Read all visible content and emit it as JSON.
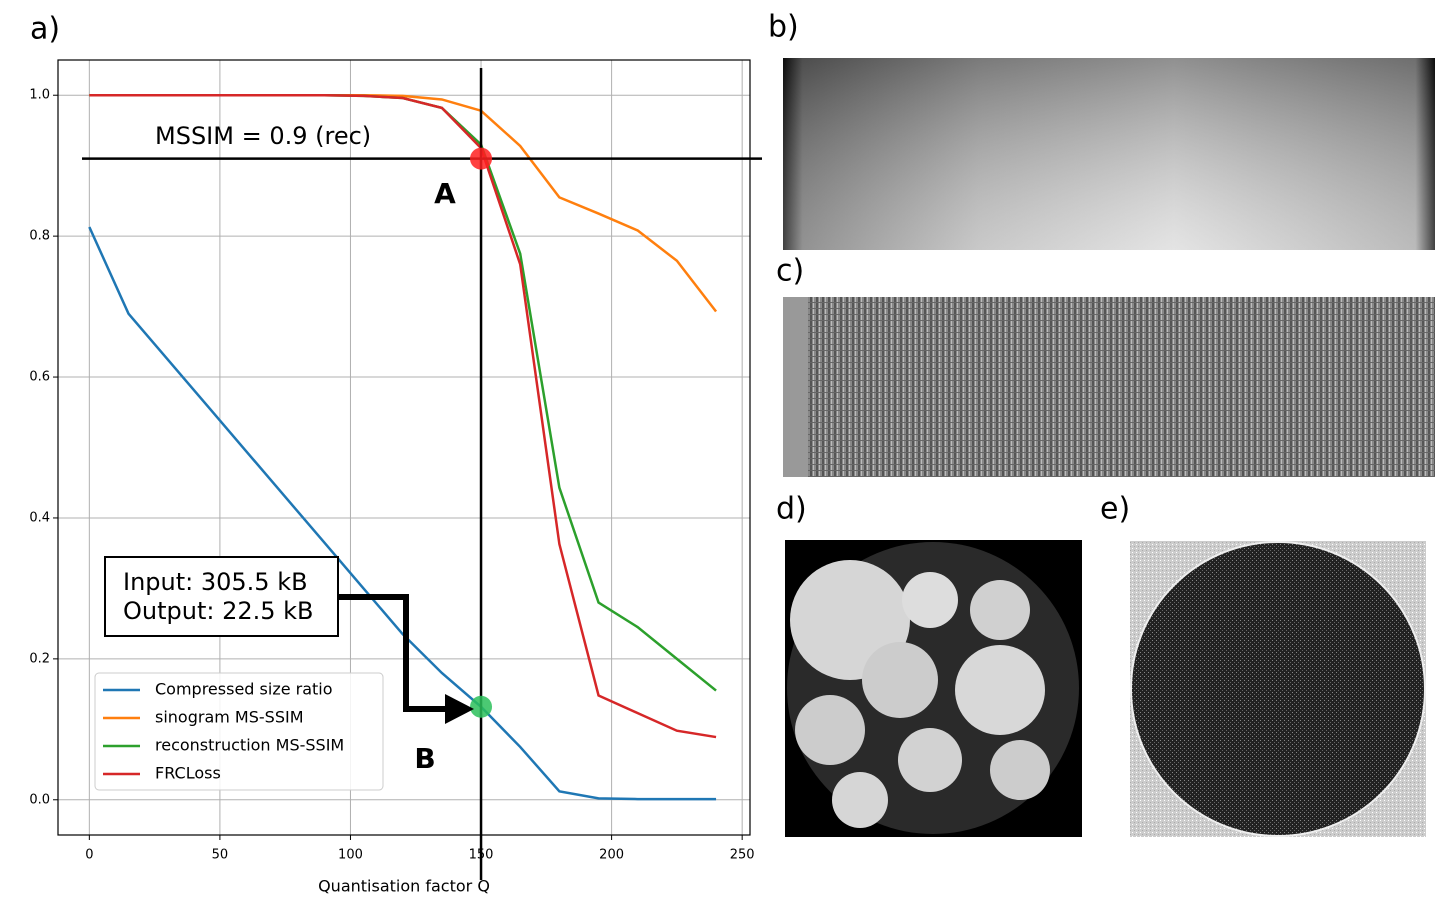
{
  "chart_data": {
    "type": "line",
    "x_label": "Quantisation factor Q",
    "x": [
      0,
      15,
      30,
      45,
      60,
      75,
      90,
      105,
      120,
      135,
      150,
      165,
      180,
      195,
      210,
      225,
      240
    ],
    "series": [
      {
        "name": "Compressed size ratio",
        "color": "#1f77b4",
        "values": [
          0.813,
          0.69,
          0.625,
          0.56,
          0.495,
          0.43,
          0.365,
          0.3,
          0.235,
          0.18,
          0.132,
          0.075,
          0.012,
          0.002,
          0.001,
          0.001,
          0.001
        ]
      },
      {
        "name": "sinogram MS-SSIM",
        "color": "#ff7f0e",
        "values": [
          1.0,
          1.0,
          1.0,
          1.0,
          1.0,
          1.0,
          1.0,
          1.0,
          0.999,
          0.994,
          0.978,
          0.928,
          0.855,
          0.832,
          0.808,
          0.765,
          0.693
        ]
      },
      {
        "name": "reconstruction MS-SSIM",
        "color": "#2ca02c",
        "values": [
          1.0,
          1.0,
          1.0,
          1.0,
          1.0,
          1.0,
          1.0,
          0.999,
          0.996,
          0.982,
          0.93,
          0.775,
          0.443,
          0.28,
          0.245,
          0.2,
          0.155
        ]
      },
      {
        "name": "FRCLoss",
        "color": "#d62728",
        "values": [
          1.0,
          1.0,
          1.0,
          1.0,
          1.0,
          1.0,
          1.0,
          0.999,
          0.996,
          0.982,
          0.925,
          0.76,
          0.363,
          0.148,
          0.123,
          0.098,
          0.089
        ]
      }
    ],
    "xlim": [
      -12,
      253
    ],
    "ylim": [
      -0.05,
      1.05
    ],
    "xticks": [
      0,
      50,
      100,
      150,
      200,
      250
    ],
    "yticks": [
      {
        "value": 0,
        "label": "0.0"
      },
      0.2,
      0.4,
      0.6,
      0.8,
      {
        "value": 1,
        "label": "1.0"
      }
    ],
    "grid": true,
    "hline": {
      "y": 0.91,
      "label": "MSSIM = 0.9 (rec)"
    },
    "vline": {
      "x": 150
    },
    "markers": [
      {
        "x": 150,
        "y": 0.91,
        "color": "#ff2020",
        "label": "A"
      },
      {
        "x": 150,
        "y": 0.132,
        "color": "#2cc05a",
        "label": "B"
      }
    ],
    "info_box": [
      "Input: 305.5 kB",
      "Output: 22.5 kB"
    ],
    "panel_labels": [
      "a)",
      "b)",
      "c)",
      "d)",
      "e)"
    ]
  }
}
